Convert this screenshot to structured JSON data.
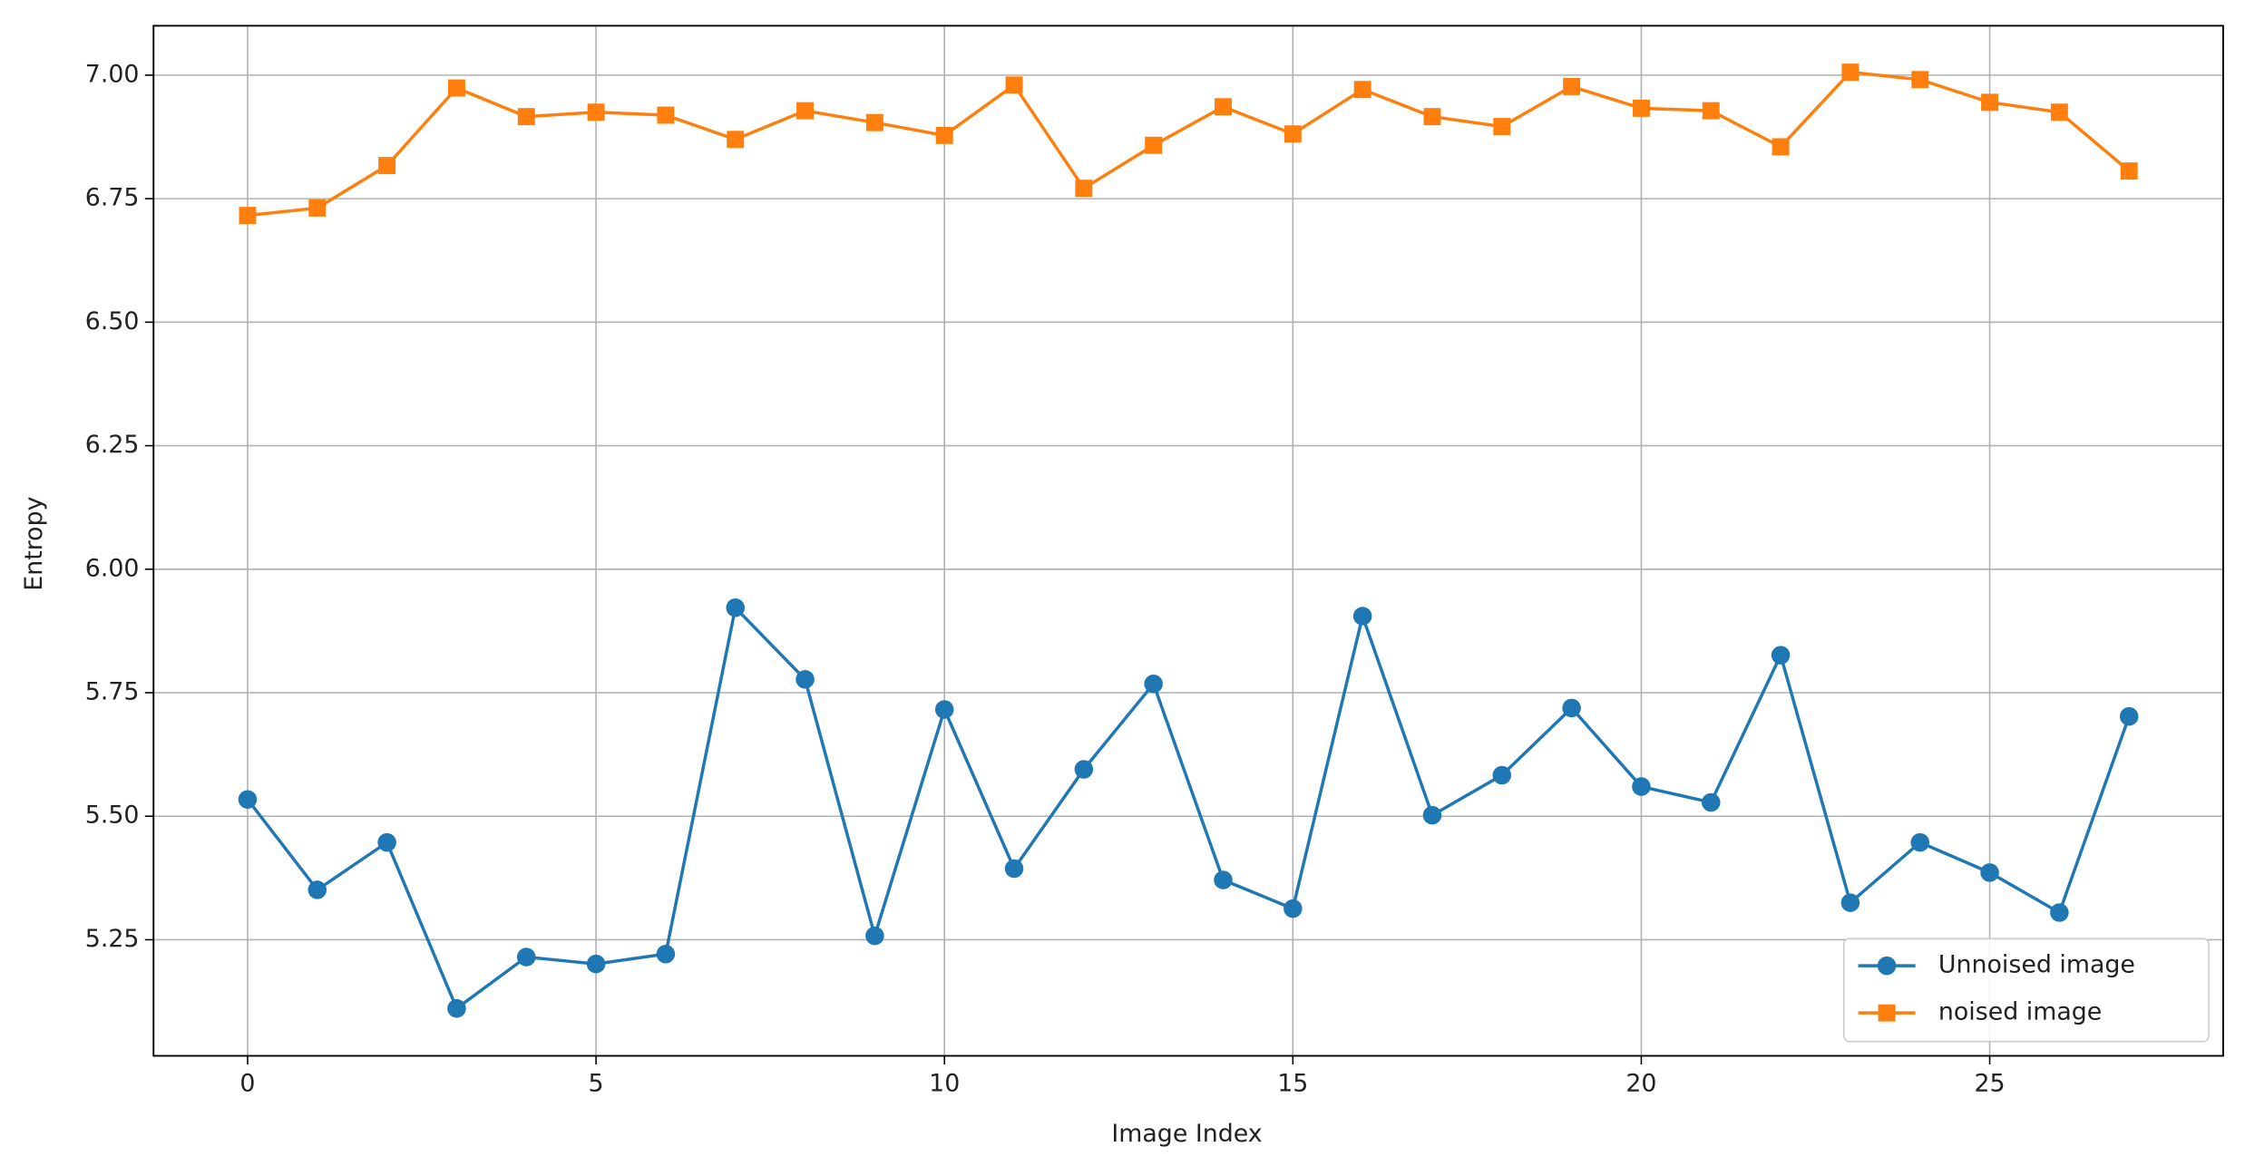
{
  "chart_data": {
    "type": "line",
    "x_label": "Image Index",
    "y_label": "Entropy",
    "x": [
      0,
      1,
      2,
      3,
      4,
      5,
      6,
      7,
      8,
      9,
      10,
      11,
      12,
      13,
      14,
      15,
      16,
      17,
      18,
      19,
      20,
      21,
      22,
      23,
      24,
      25,
      26,
      27
    ],
    "series": [
      {
        "name": "Unnoised image",
        "color": "#1f77b4",
        "marker": "circle",
        "values": [
          5.534,
          5.351,
          5.447,
          5.111,
          5.215,
          5.201,
          5.221,
          5.922,
          5.777,
          5.258,
          5.716,
          5.394,
          5.595,
          5.768,
          5.371,
          5.313,
          5.905,
          5.502,
          5.583,
          5.719,
          5.56,
          5.528,
          5.826,
          5.325,
          5.447,
          5.386,
          5.305,
          5.702
        ]
      },
      {
        "name": "noised image",
        "color": "#ff7f0e",
        "marker": "square",
        "values": [
          6.716,
          6.731,
          6.817,
          6.974,
          6.916,
          6.925,
          6.919,
          6.87,
          6.928,
          6.904,
          6.878,
          6.98,
          6.771,
          6.858,
          6.936,
          6.881,
          6.971,
          6.916,
          6.896,
          6.977,
          6.933,
          6.928,
          6.855,
          7.006,
          6.991,
          6.945,
          6.925,
          6.806
        ]
      }
    ],
    "xlim": [
      -1.35,
      28.35
    ],
    "xticks": [
      0,
      5,
      10,
      15,
      20,
      25
    ],
    "ylim": [
      5.015,
      7.1
    ],
    "yticks": [
      5.25,
      {
        "value": 5.5,
        "label": "5.50"
      },
      5.75,
      {
        "value": 6.0,
        "label": "6.00"
      },
      6.25,
      {
        "value": 6.5,
        "label": "6.50"
      },
      6.75,
      {
        "value": 7.0,
        "label": "7.00"
      }
    ],
    "grid": true,
    "legend": "lower right"
  }
}
